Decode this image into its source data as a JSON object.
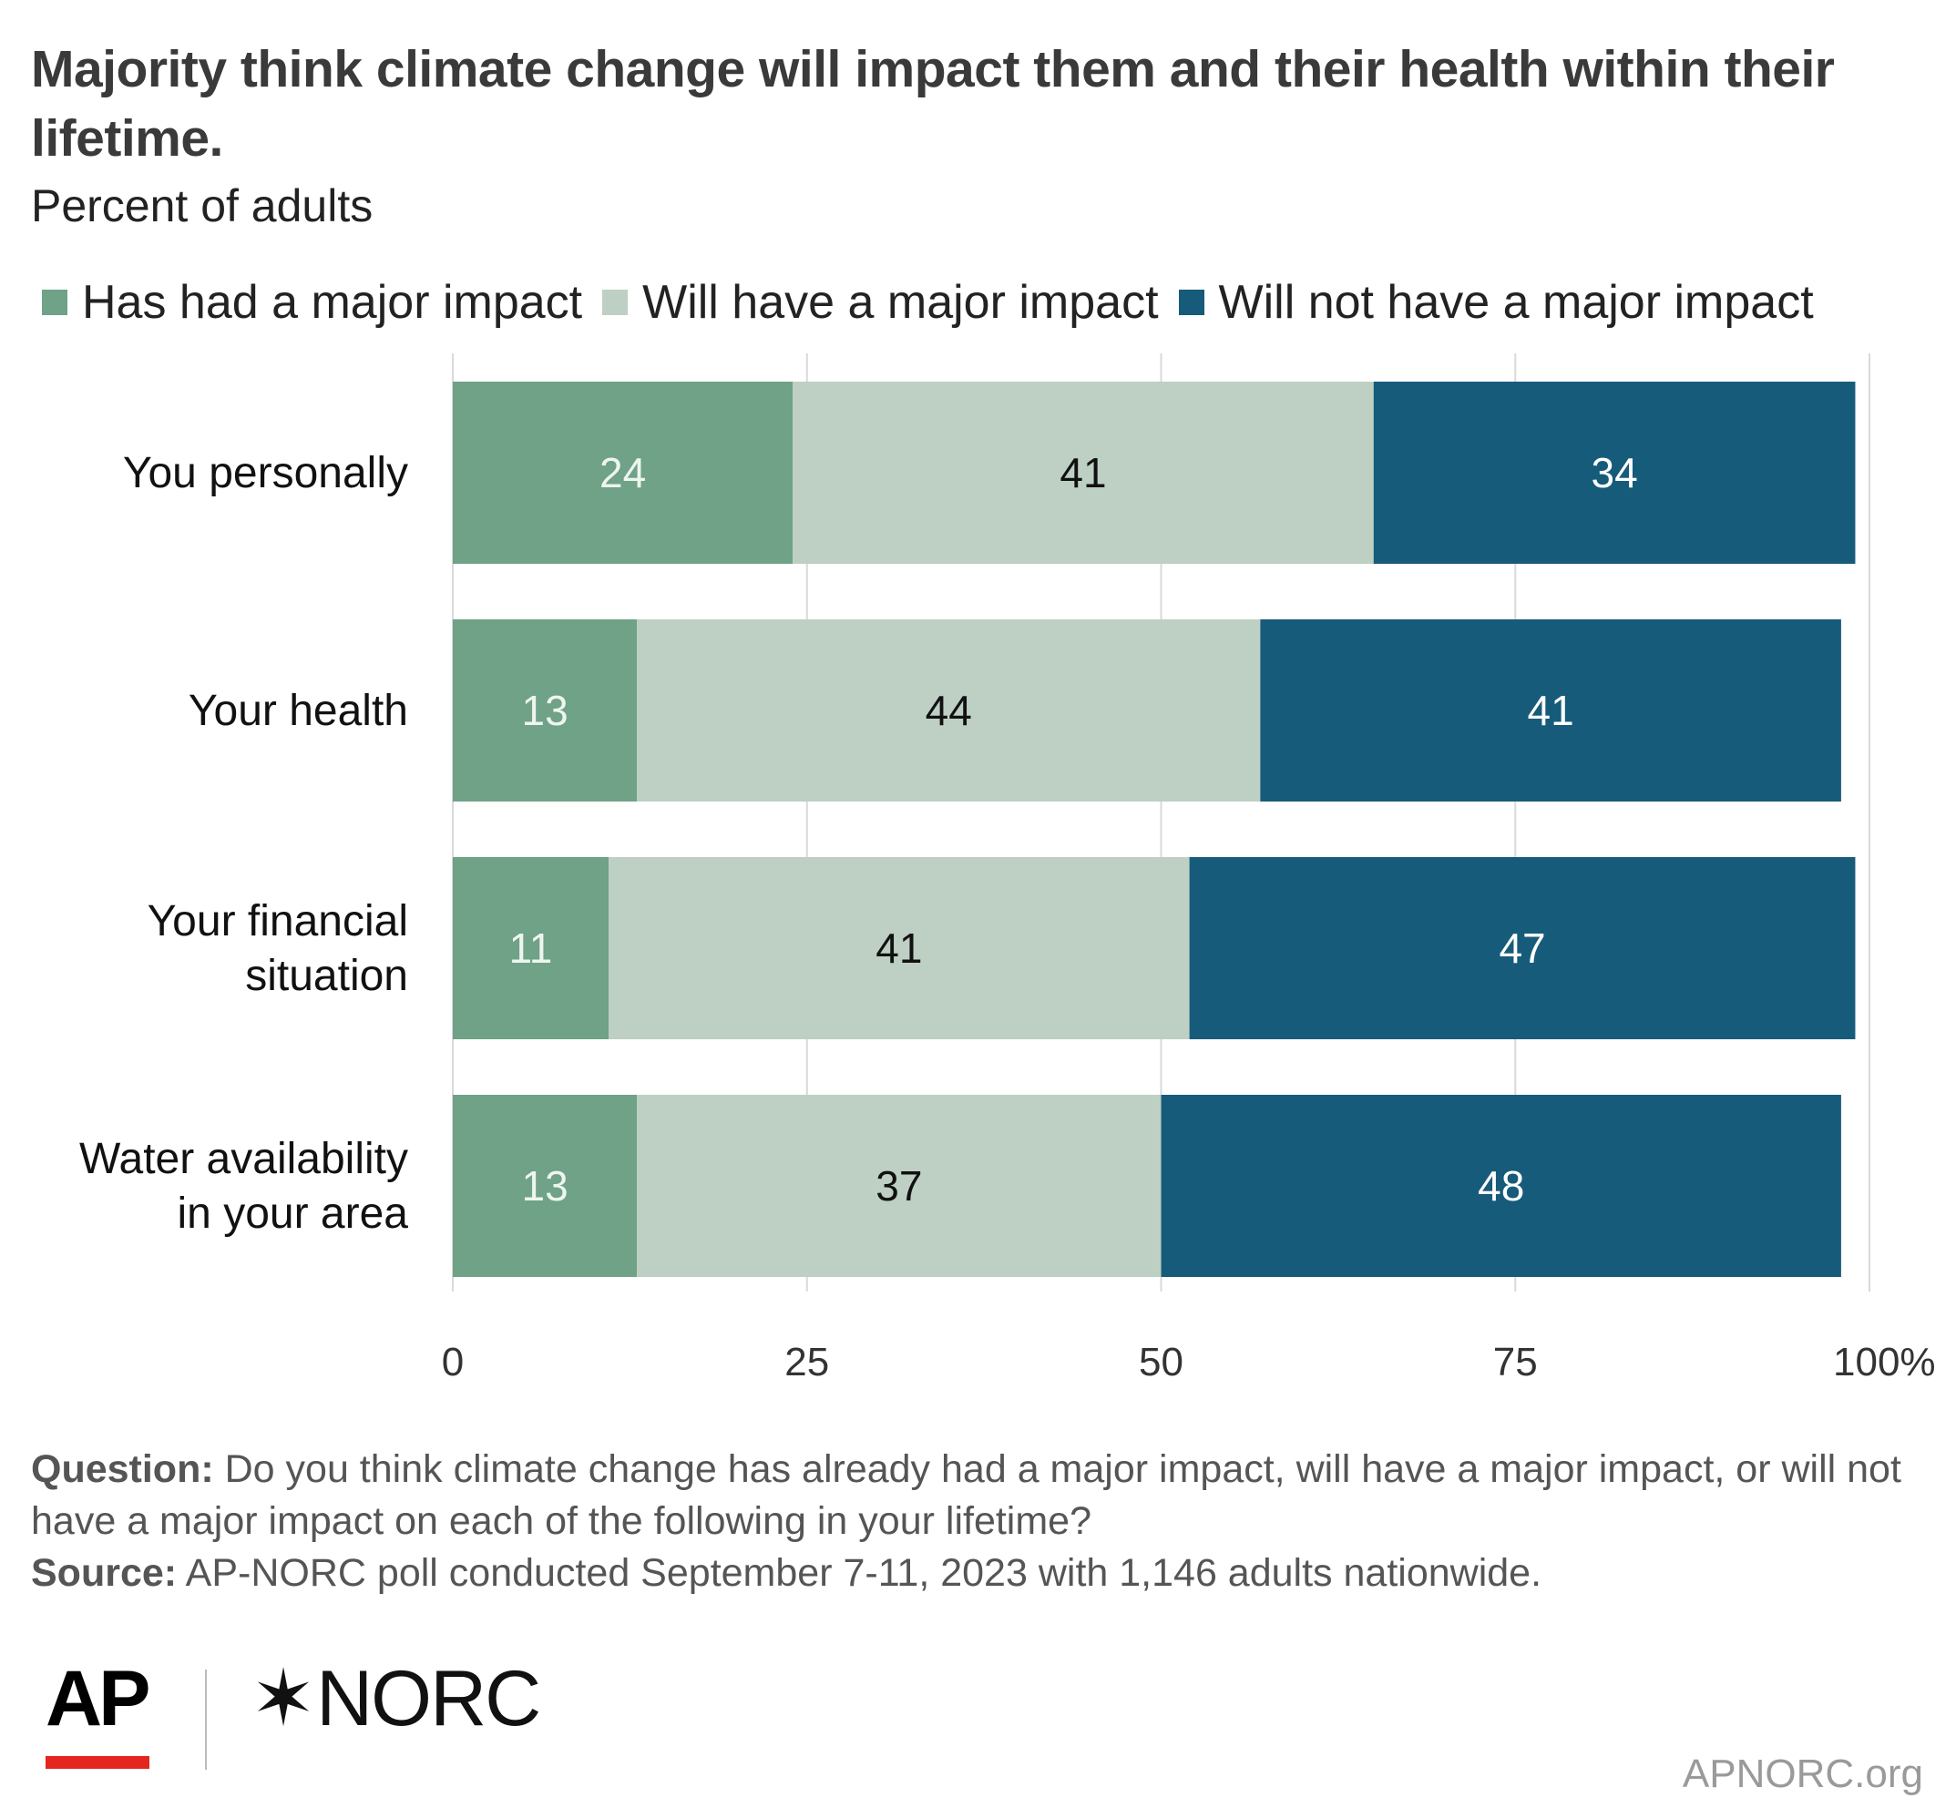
{
  "title": "Majority think climate change will impact them and their health within their lifetime.",
  "subtitle": "Percent of adults",
  "legend": [
    {
      "label": "Has had a major impact",
      "color": "#6fa287"
    },
    {
      "label": "Will have a major impact",
      "color": "#becfc4"
    },
    {
      "label": "Will not have a major impact",
      "color": "#175b7a"
    }
  ],
  "chart_data": {
    "type": "bar",
    "orientation": "horizontal",
    "stacked": true,
    "categories": [
      [
        "You personally"
      ],
      [
        "Your health"
      ],
      [
        "Your financial",
        "situation"
      ],
      [
        "Water availability",
        "in your area"
      ]
    ],
    "series": [
      {
        "name": "Has had a major impact",
        "values": [
          24,
          13,
          11,
          13
        ],
        "color": "#6fa287",
        "label_color": "#eef5ef"
      },
      {
        "name": "Will have a major impact",
        "values": [
          41,
          44,
          41,
          37
        ],
        "color": "#becfc4",
        "label_color": "#111111"
      },
      {
        "name": "Will not have a major impact",
        "values": [
          34,
          41,
          47,
          48
        ],
        "color": "#175b7a",
        "label_color": "#ffffff"
      }
    ],
    "xlim": [
      0,
      100
    ],
    "xticks": [
      "0",
      "25",
      "50",
      "75",
      "100"
    ],
    "x_unit": "%",
    "grid": true,
    "legend_position": "top"
  },
  "notes": {
    "question_label": "Question:",
    "question_text": " Do you think climate change has already had a major impact, will have a major impact, or will not have a major impact on each of the following in your lifetime?",
    "source_label": "Source:",
    "source_text": " AP-NORC poll conducted September 7-11, 2023 with 1,146 adults nationwide."
  },
  "logos": {
    "ap": "AP",
    "norc": "NORC",
    "norc_mark": "✶"
  },
  "site": "APNORC.org"
}
